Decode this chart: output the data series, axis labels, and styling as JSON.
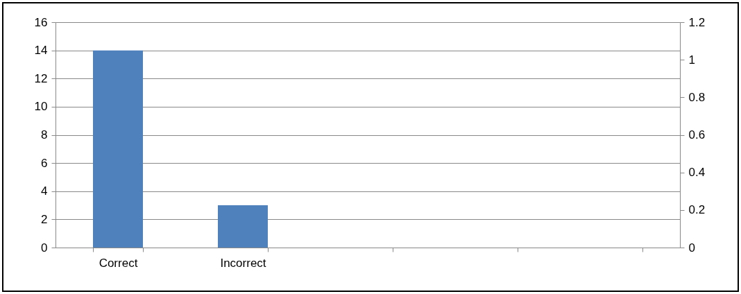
{
  "chart_data": {
    "type": "bar",
    "categories": [
      "Correct",
      "Incorrect",
      null,
      null,
      null
    ],
    "series": [
      {
        "color": "#4f81bd",
        "values": [
          14,
          3,
          null,
          null,
          null
        ]
      }
    ],
    "ylim": [
      0,
      16
    ],
    "yticks": [
      0,
      2,
      4,
      6,
      8,
      10,
      12,
      14,
      16
    ],
    "y2lim": [
      0,
      1.2
    ],
    "y2ticks": [
      0,
      0.2,
      0.4,
      0.6,
      0.8,
      1,
      1.2
    ],
    "grid": "y",
    "legend": false
  }
}
